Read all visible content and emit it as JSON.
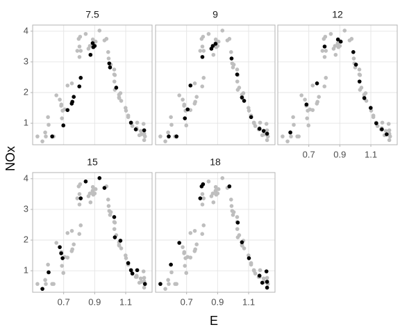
{
  "chart_data": {
    "type": "scatter",
    "xlabel": "E",
    "ylabel": "NOx",
    "xlim": [
      0.5,
      1.27
    ],
    "ylim": [
      0.3,
      4.2
    ],
    "xticks": [
      0.7,
      0.9,
      1.1
    ],
    "yticks": [
      1,
      2,
      3,
      4
    ],
    "grid": true,
    "color": "#000000",
    "background_color": "#bebebe",
    "facets": [
      {
        "title": "7.5",
        "x": [
          0.626,
          0.698,
          0.725,
          0.752,
          0.756,
          0.765,
          0.801,
          0.81,
          0.873,
          0.887,
          0.891,
          0.9,
          0.994,
          0.999,
          1.039,
          1.134,
          1.165,
          1.219
        ],
        "values": [
          0.57,
          0.93,
          1.43,
          1.64,
          1.7,
          1.86,
          2.2,
          2.48,
          3.23,
          3.61,
          3.48,
          3.52,
          2.95,
          2.82,
          2.16,
          1.02,
          0.8,
          0.77
        ]
      },
      {
        "title": "9",
        "x": [
          0.585,
          0.635,
          0.689,
          0.707,
          0.725,
          0.802,
          0.86,
          0.869,
          0.887,
          0.99,
          1.026,
          1.057,
          1.071,
          1.116,
          1.17,
          1.197,
          1.219
        ],
        "values": [
          0.57,
          0.57,
          1.16,
          1.45,
          2.23,
          3.16,
          3.43,
          3.52,
          3.59,
          3.11,
          2.59,
          1.84,
          1.73,
          1.2,
          0.82,
          0.75,
          0.66
        ]
      },
      {
        "title": "12",
        "x": [
          0.581,
          0.685,
          0.753,
          0.802,
          0.888,
          0.906,
          0.987,
          1.004,
          1.027,
          1.058,
          1.099,
          1.135,
          1.171,
          1.202
        ],
        "values": [
          0.7,
          1.61,
          2.3,
          3.5,
          3.73,
          3.66,
          3.32,
          2.91,
          2.36,
          1.82,
          1.5,
          1.0,
          0.8,
          0.64
        ]
      },
      {
        "title": "15",
        "x": [
          0.563,
          0.603,
          0.675,
          0.684,
          0.693,
          0.81,
          0.842,
          0.931,
          0.963,
          1.026,
          1.03,
          1.066,
          1.116,
          1.134,
          1.143,
          1.174,
          1.224
        ],
        "values": [
          0.41,
          0.95,
          1.77,
          1.57,
          1.41,
          3.36,
          3.91,
          4.02,
          3.7,
          2.75,
          2.09,
          1.98,
          1.25,
          1.02,
          0.91,
          1.02,
          0.57
        ]
      },
      {
        "title": "18",
        "x": [
          0.531,
          0.599,
          0.653,
          0.788,
          0.797,
          0.806,
          0.976,
          1.03,
          1.057,
          1.102,
          1.17,
          1.188,
          1.215,
          1.219,
          1.219
        ],
        "values": [
          0.57,
          1.2,
          1.91,
          3.36,
          3.75,
          3.82,
          3.75,
          2.57,
          1.93,
          1.41,
          0.84,
          0.61,
          0.98,
          0.64,
          0.45
        ]
      }
    ]
  }
}
